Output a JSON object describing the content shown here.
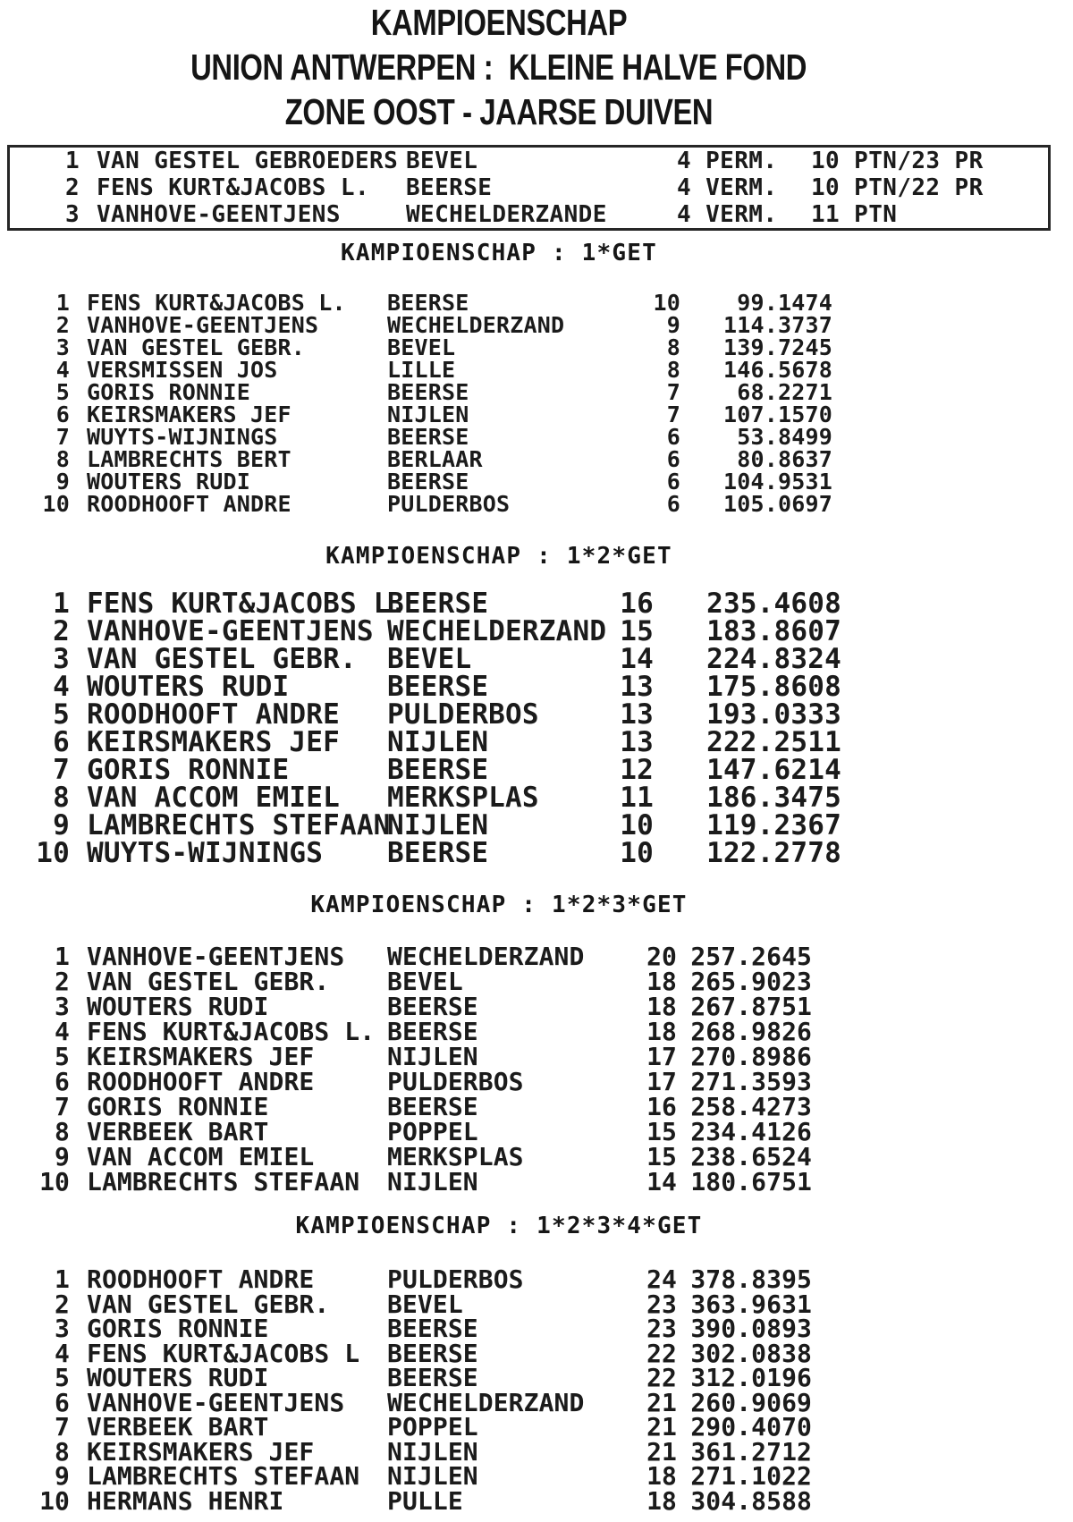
{
  "page": {
    "background_color": "#ffffff",
    "text_color": "#1b1b1b",
    "border_color": "#262626"
  },
  "title": {
    "line1": "KAMPIOENSCHAP",
    "line2": "UNION ANTWERPEN :  KLEINE HALVE FOND",
    "line3": "ZONE OOST - JAARSE DUIVEN"
  },
  "summary_box": {
    "rows": [
      {
        "rank": "1",
        "name": "VAN GESTEL GEBROEDERS",
        "city": "BEVEL",
        "races": "4 PERM.",
        "points": "10 PTN/23 PR"
      },
      {
        "rank": "2",
        "name": "FENS KURT&JACOBS L.",
        "city": "BEERSE",
        "races": "4 VERM.",
        "points": "10 PTN/22 PR"
      },
      {
        "rank": "3",
        "name": "VANHOVE-GEENTJENS",
        "city": "WECHELDERZANDE",
        "races": "4 VERM.",
        "points": "11 PTN"
      }
    ]
  },
  "sections": [
    {
      "header": "KAMPIOENSCHAP : 1*GET",
      "rows": [
        {
          "rank": "1",
          "name": "FENS KURT&JACOBS L.",
          "city": "BEERSE",
          "count": "10",
          "points": "99.1474"
        },
        {
          "rank": "2",
          "name": "VANHOVE-GEENTJENS",
          "city": "WECHELDERZAND",
          "count": "9",
          "points": "114.3737"
        },
        {
          "rank": "3",
          "name": "VAN GESTEL GEBR.",
          "city": "BEVEL",
          "count": "8",
          "points": "139.7245"
        },
        {
          "rank": "4",
          "name": "VERSMISSEN JOS",
          "city": "LILLE",
          "count": "8",
          "points": "146.5678"
        },
        {
          "rank": "5",
          "name": "GORIS RONNIE",
          "city": "BEERSE",
          "count": "7",
          "points": "68.2271"
        },
        {
          "rank": "6",
          "name": "KEIRSMAKERS JEF",
          "city": "NIJLEN",
          "count": "7",
          "points": "107.1570"
        },
        {
          "rank": "7",
          "name": "WUYTS-WIJNINGS",
          "city": "BEERSE",
          "count": "6",
          "points": "53.8499"
        },
        {
          "rank": "8",
          "name": "LAMBRECHTS BERT",
          "city": "BERLAAR",
          "count": "6",
          "points": "80.8637"
        },
        {
          "rank": "9",
          "name": "WOUTERS RUDI",
          "city": "BEERSE",
          "count": "6",
          "points": "104.9531"
        },
        {
          "rank": "10",
          "name": "ROODHOOFT ANDRE",
          "city": "PULDERBOS",
          "count": "6",
          "points": "105.0697"
        }
      ]
    },
    {
      "header": "KAMPIOENSCHAP : 1*2*GET",
      "rows": [
        {
          "rank": "1",
          "name": "FENS KURT&JACOBS L.",
          "city": "BEERSE",
          "count": "16",
          "points": "235.4608"
        },
        {
          "rank": "2",
          "name": "VANHOVE-GEENTJENS",
          "city": "WECHELDERZAND",
          "count": "15",
          "points": "183.8607"
        },
        {
          "rank": "3",
          "name": "VAN GESTEL GEBR.",
          "city": "BEVEL",
          "count": "14",
          "points": "224.8324"
        },
        {
          "rank": "4",
          "name": "WOUTERS RUDI",
          "city": "BEERSE",
          "count": "13",
          "points": "175.8608"
        },
        {
          "rank": "5",
          "name": "ROODHOOFT ANDRE",
          "city": "PULDERBOS",
          "count": "13",
          "points": "193.0333"
        },
        {
          "rank": "6",
          "name": "KEIRSMAKERS JEF",
          "city": "NIJLEN",
          "count": "13",
          "points": "222.2511"
        },
        {
          "rank": "7",
          "name": "GORIS RONNIE",
          "city": "BEERSE",
          "count": "12",
          "points": "147.6214"
        },
        {
          "rank": "8",
          "name": "VAN ACCOM EMIEL",
          "city": "MERKSPLAS",
          "count": "11",
          "points": "186.3475"
        },
        {
          "rank": "9",
          "name": "LAMBRECHTS STEFAAN",
          "city": "NIJLEN",
          "count": "10",
          "points": "119.2367"
        },
        {
          "rank": "10",
          "name": "WUYTS-WIJNINGS",
          "city": "BEERSE",
          "count": "10",
          "points": "122.2778"
        }
      ]
    },
    {
      "header": "KAMPIOENSCHAP : 1*2*3*GET",
      "rows": [
        {
          "rank": "1",
          "name": "VANHOVE-GEENTJENS",
          "city": "WECHELDERZAND",
          "count": "20",
          "points": "257.2645"
        },
        {
          "rank": "2",
          "name": "VAN GESTEL GEBR.",
          "city": "BEVEL",
          "count": "18",
          "points": "265.9023"
        },
        {
          "rank": "3",
          "name": "WOUTERS RUDI",
          "city": "BEERSE",
          "count": "18",
          "points": "267.8751"
        },
        {
          "rank": "4",
          "name": "FENS KURT&JACOBS L.",
          "city": "BEERSE",
          "count": "18",
          "points": "268.9826"
        },
        {
          "rank": "5",
          "name": "KEIRSMAKERS JEF",
          "city": "NIJLEN",
          "count": "17",
          "points": "270.8986"
        },
        {
          "rank": "6",
          "name": "ROODHOOFT ANDRE",
          "city": "PULDERBOS",
          "count": "17",
          "points": "271.3593"
        },
        {
          "rank": "7",
          "name": "GORIS RONNIE",
          "city": "BEERSE",
          "count": "16",
          "points": "258.4273"
        },
        {
          "rank": "8",
          "name": "VERBEEK BART",
          "city": "POPPEL",
          "count": "15",
          "points": "234.4126"
        },
        {
          "rank": "9",
          "name": "VAN ACCOM EMIEL",
          "city": "MERKSPLAS",
          "count": "15",
          "points": "238.6524"
        },
        {
          "rank": "10",
          "name": "LAMBRECHTS STEFAAN",
          "city": "NIJLEN",
          "count": "14",
          "points": "180.6751"
        }
      ]
    },
    {
      "header": "KAMPIOENSCHAP : 1*2*3*4*GET",
      "rows": [
        {
          "rank": "1",
          "name": "ROODHOOFT ANDRE",
          "city": "PULDERBOS",
          "count": "24",
          "points": "378.8395"
        },
        {
          "rank": "2",
          "name": "VAN GESTEL GEBR.",
          "city": "BEVEL",
          "count": "23",
          "points": "363.9631"
        },
        {
          "rank": "3",
          "name": "GORIS RONNIE",
          "city": "BEERSE",
          "count": "23",
          "points": "390.0893"
        },
        {
          "rank": "4",
          "name": "FENS KURT&JACOBS L",
          "city": "BEERSE",
          "count": "22",
          "points": "302.0838"
        },
        {
          "rank": "5",
          "name": "WOUTERS RUDI",
          "city": "BEERSE",
          "count": "22",
          "points": "312.0196"
        },
        {
          "rank": "6",
          "name": "VANHOVE-GEENTJENS",
          "city": "WECHELDERZAND",
          "count": "21",
          "points": "260.9069"
        },
        {
          "rank": "7",
          "name": "VERBEEK BART",
          "city": "POPPEL",
          "count": "21",
          "points": "290.4070"
        },
        {
          "rank": "8",
          "name": "KEIRSMAKERS JEF",
          "city": "NIJLEN",
          "count": "21",
          "points": "361.2712"
        },
        {
          "rank": "9",
          "name": "LAMBRECHTS STEFAAN",
          "city": "NIJLEN",
          "count": "18",
          "points": "271.1022"
        },
        {
          "rank": "10",
          "name": "HERMANS HENRI",
          "city": "PULLE",
          "count": "18",
          "points": "304.8588"
        }
      ]
    }
  ]
}
